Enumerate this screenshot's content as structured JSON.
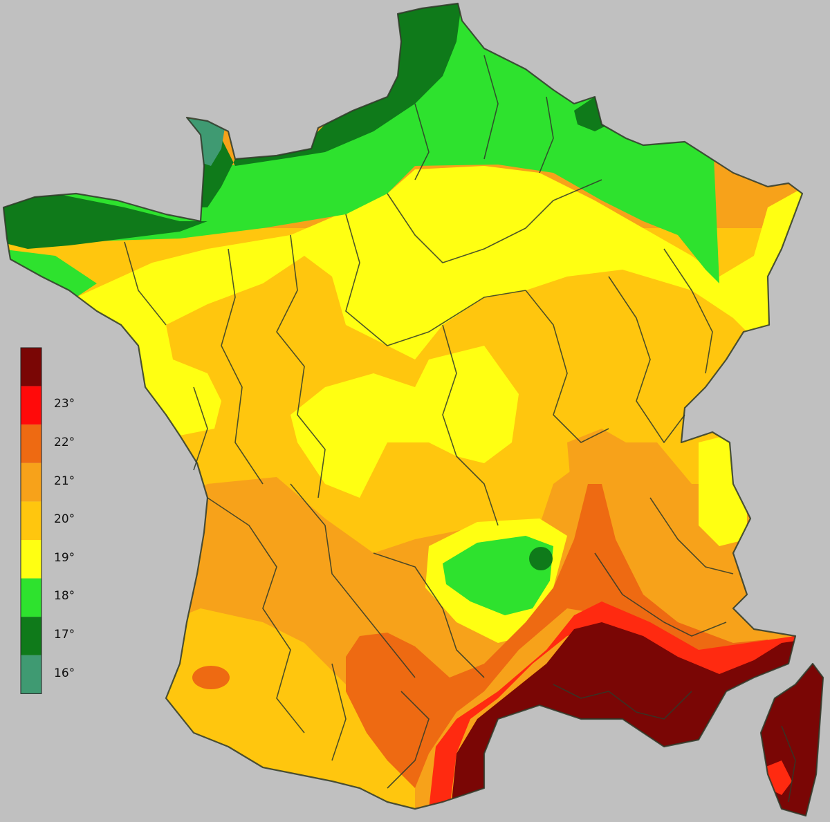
{
  "map": {
    "subject": "France mean summer temperature zones",
    "colors": {
      "background": "#c0c0c0",
      "t16": "#3f9a72",
      "t17": "#0f7a1a",
      "t18": "#2ee22e",
      "t19": "#ffff12",
      "t20": "#ffc60e",
      "t21": "#f7a21a",
      "t22": "#ee6a12",
      "t22b": "#ff2a10",
      "t23": "#7a0605"
    }
  },
  "legend": {
    "items": [
      {
        "label": "23°",
        "color": "#ff0a0a"
      },
      {
        "label": "22°",
        "color": "#ee6a12"
      },
      {
        "label": "21°",
        "color": "#f7a21a"
      },
      {
        "label": "20°",
        "color": "#ffc60e"
      },
      {
        "label": "19°",
        "color": "#ffff12"
      },
      {
        "label": "18°",
        "color": "#2ee22e"
      },
      {
        "label": "17°",
        "color": "#0f7a1a"
      },
      {
        "label": "16°",
        "color": "#3f9a72"
      }
    ],
    "top_color": "#7a0605"
  }
}
